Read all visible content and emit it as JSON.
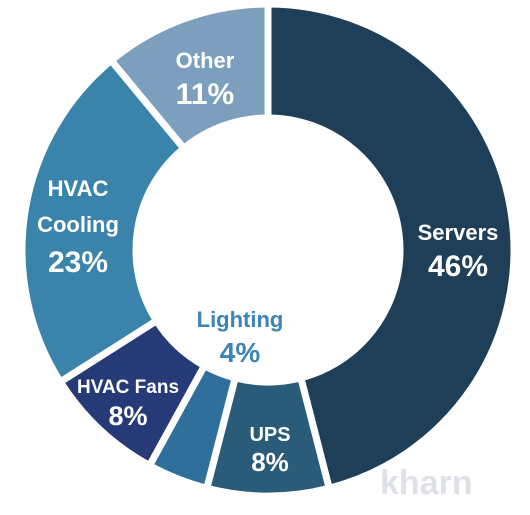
{
  "chart_data": {
    "type": "pie",
    "variant": "donut",
    "title": "",
    "slices": [
      {
        "name": "Servers",
        "value": 46,
        "label": "46%",
        "color": "#1e3f57"
      },
      {
        "name": "UPS",
        "value": 8,
        "label": "8%",
        "color": "#2a5c7a"
      },
      {
        "name": "",
        "value": 4,
        "label": "",
        "color": "#2f6f9c"
      },
      {
        "name": "HVAC Fans",
        "value": 8,
        "label": "8%",
        "color": "#273a78"
      },
      {
        "name": "HVAC Cooling",
        "value": 23,
        "label": "23%",
        "color": "#3a83ab"
      },
      {
        "name": "Other",
        "value": 11,
        "label": "11%",
        "color": "#7c9fbe"
      }
    ],
    "inner_label": {
      "name": "Lighting",
      "value": "4%",
      "color": "#3a84b6"
    }
  },
  "watermark": {
    "text": "kharn"
  }
}
